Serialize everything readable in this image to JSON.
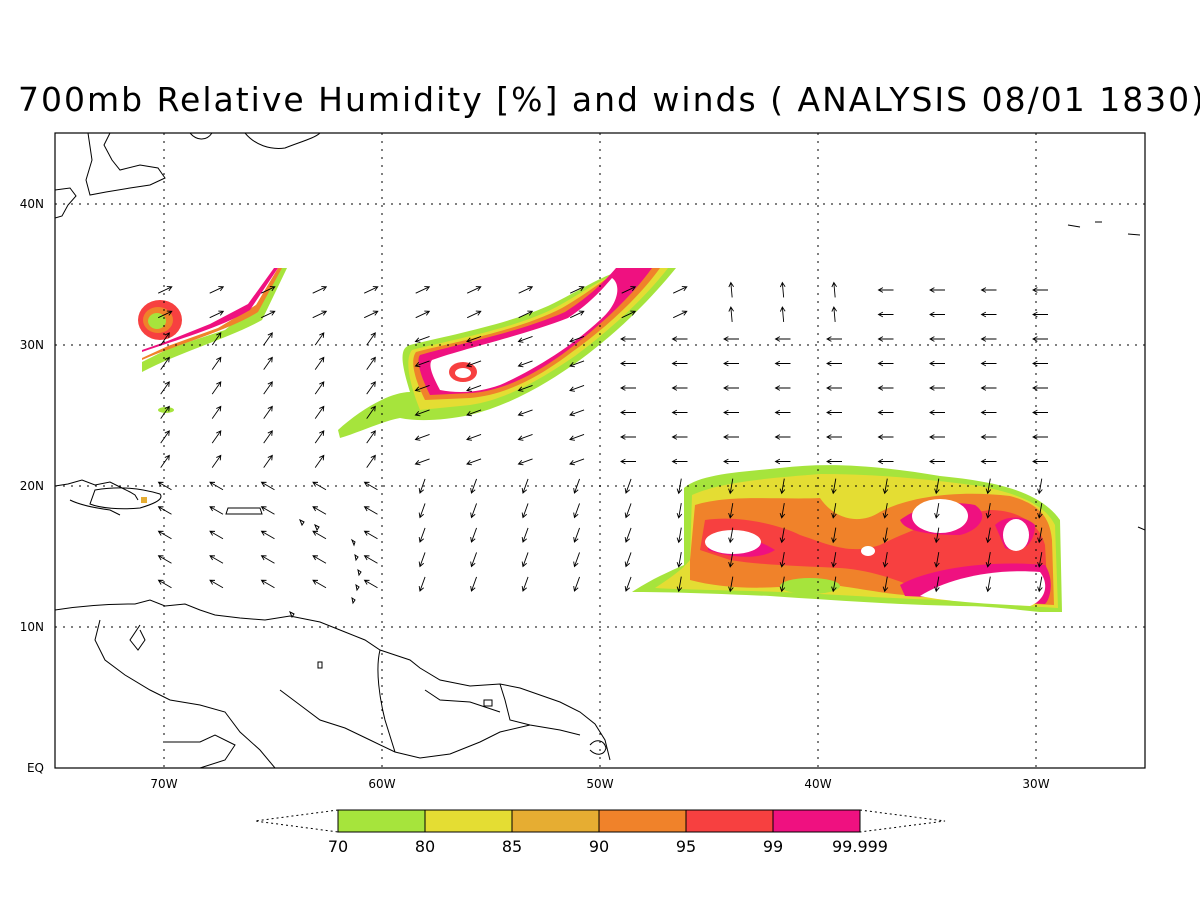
{
  "title": "700mb Relative Humidity [%] and winds ( ANALYSIS 08/01 1830)",
  "axes": {
    "lon_labels": [
      "70W",
      "60W",
      "50W",
      "40W",
      "30W"
    ],
    "lat_labels": [
      "40N",
      "30N",
      "20N",
      "10N",
      "EQ"
    ]
  },
  "colorbar": {
    "labels": [
      "70",
      "80",
      "85",
      "90",
      "95",
      "99",
      "99.999"
    ],
    "colors": [
      "#a6e43c",
      "#e4dd33",
      "#e6ad32",
      "#f0822a",
      "#f74040",
      "#ef1180"
    ]
  },
  "colors": {
    "coast": "#000000",
    "grid": "#000000",
    "arrow": "#000000"
  }
}
